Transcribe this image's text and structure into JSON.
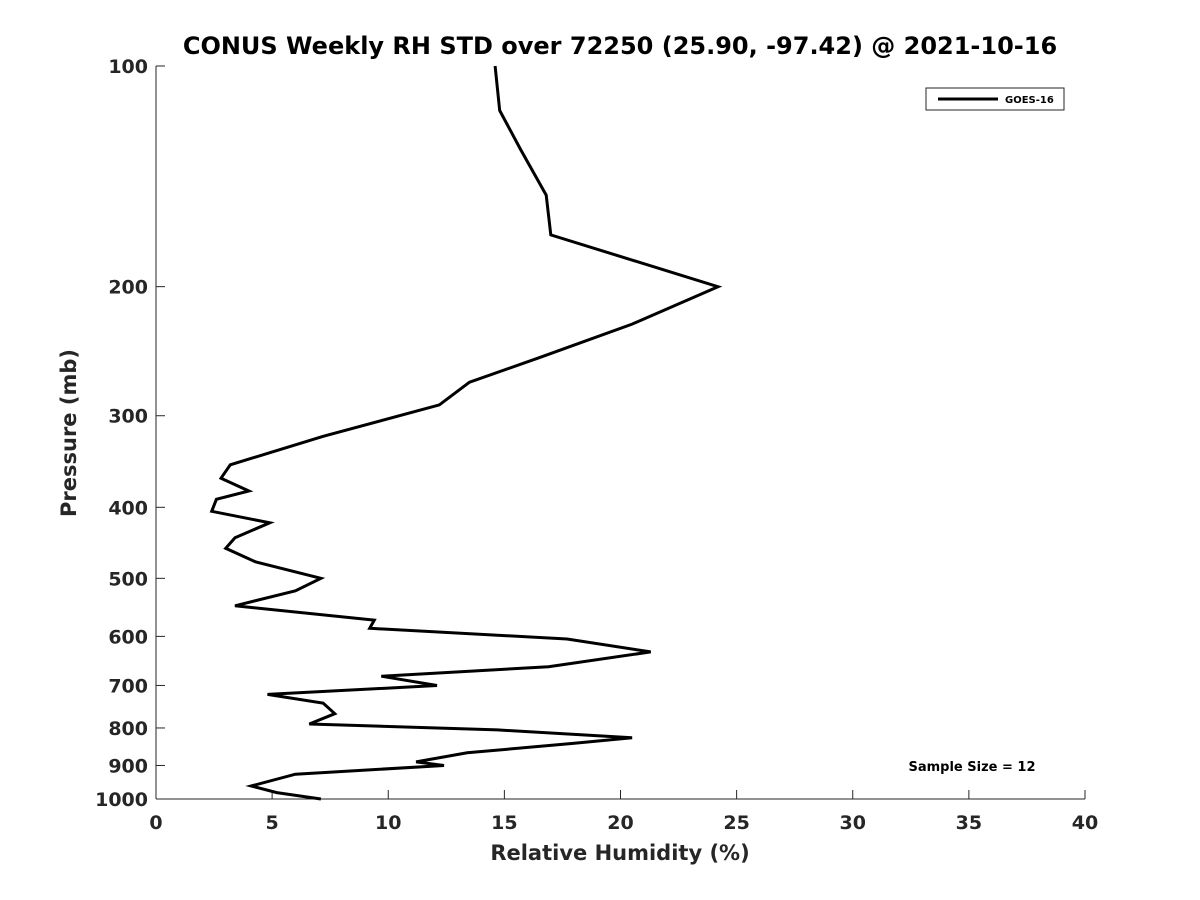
{
  "chart_data": {
    "type": "line",
    "title": "CONUS Weekly RH STD over 72250 (25.90, -97.42) @ 2021-10-16",
    "xlabel": "Relative Humidity (%)",
    "ylabel": "Pressure (mb)",
    "xlim": [
      0,
      40
    ],
    "ylim": [
      100,
      1000
    ],
    "y_scale": "log",
    "y_reversed": true,
    "grid": false,
    "x_ticks": [
      0,
      5,
      10,
      15,
      20,
      25,
      30,
      35,
      40
    ],
    "y_ticks": [
      100,
      200,
      300,
      400,
      500,
      600,
      700,
      800,
      900,
      1000
    ],
    "legend_position": "top-right",
    "annotation": "Sample Size = 12",
    "series": [
      {
        "name": "GOES-16",
        "color": "#000000",
        "x": [
          14.6,
          14.8,
          15.7,
          16.8,
          17.0,
          24.2,
          20.5,
          16.5,
          13.5,
          12.2,
          7.2,
          3.2,
          2.8,
          4.0,
          2.6,
          2.4,
          4.9,
          3.4,
          3.0,
          4.3,
          7.1,
          6.0,
          3.4,
          9.4,
          9.2,
          17.7,
          21.3,
          16.9,
          9.7,
          12.1,
          4.8,
          7.2,
          7.7,
          6.6,
          14.7,
          20.5,
          17.9,
          13.4,
          11.2,
          12.4,
          6.0,
          4.1,
          5.2,
          7.1
        ],
        "y": [
          100,
          115,
          130,
          150,
          170,
          200,
          225,
          250,
          270,
          290,
          320,
          350,
          365,
          380,
          390,
          405,
          420,
          440,
          455,
          475,
          500,
          520,
          545,
          570,
          585,
          605,
          630,
          660,
          680,
          700,
          720,
          740,
          765,
          790,
          805,
          825,
          840,
          865,
          890,
          900,
          925,
          960,
          980,
          1000
        ]
      }
    ]
  }
}
